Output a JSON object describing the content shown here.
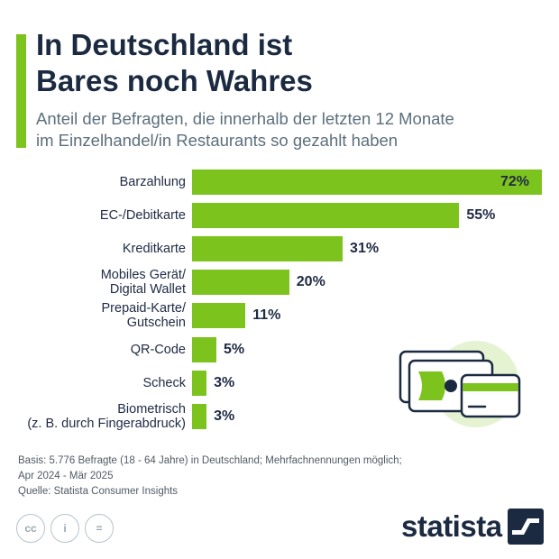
{
  "header": {
    "title_line1": "In Deutschland ist",
    "title_line2": "Bares noch Wahres",
    "subtitle_line1": "Anteil der Befragten, die innerhalb der letzten 12 Monate",
    "subtitle_line2": "im Einzelhandel/in Restaurants so gezahlt haben"
  },
  "chart_data": {
    "type": "bar",
    "orientation": "horizontal",
    "categories": [
      [
        "Barzahlung"
      ],
      [
        "EC-/Debitkarte"
      ],
      [
        "Kreditkarte"
      ],
      [
        "Mobiles Gerät/",
        "Digital Wallet"
      ],
      [
        "Prepaid-Karte/",
        "Gutschein"
      ],
      [
        "QR-Code"
      ],
      [
        "Scheck"
      ],
      [
        "Biometrisch",
        "(z. B. durch Fingerabdruck)"
      ]
    ],
    "values": [
      72,
      55,
      31,
      20,
      11,
      5,
      3,
      3
    ],
    "value_labels": [
      "72%",
      "55%",
      "31%",
      "20%",
      "11%",
      "5%",
      "3%",
      "3%"
    ],
    "unit": "%",
    "xlim": [
      0,
      72
    ],
    "bar_color": "#7dc31d",
    "title": "In Deutschland ist Bares noch Wahres",
    "xlabel": "",
    "ylabel": ""
  },
  "footer": {
    "basis_line1": "Basis: 5.776 Befragte (18 - 64 Jahre) in Deutschland; Mehrfachnennungen möglich;",
    "basis_line2": "Apr 2024 - Mär 2025",
    "source": "Quelle: Statista Consumer Insights"
  },
  "license_icons": [
    {
      "name": "cc-icon",
      "glyph": "cc"
    },
    {
      "name": "by-icon",
      "glyph": "i"
    },
    {
      "name": "nd-icon",
      "glyph": "="
    }
  ],
  "brand": {
    "name": "statista"
  },
  "colors": {
    "accent": "#7dc31d",
    "title": "#1b2a41",
    "subtitle": "#5c6f7c",
    "illustration_bg": "#e6f3d2"
  }
}
